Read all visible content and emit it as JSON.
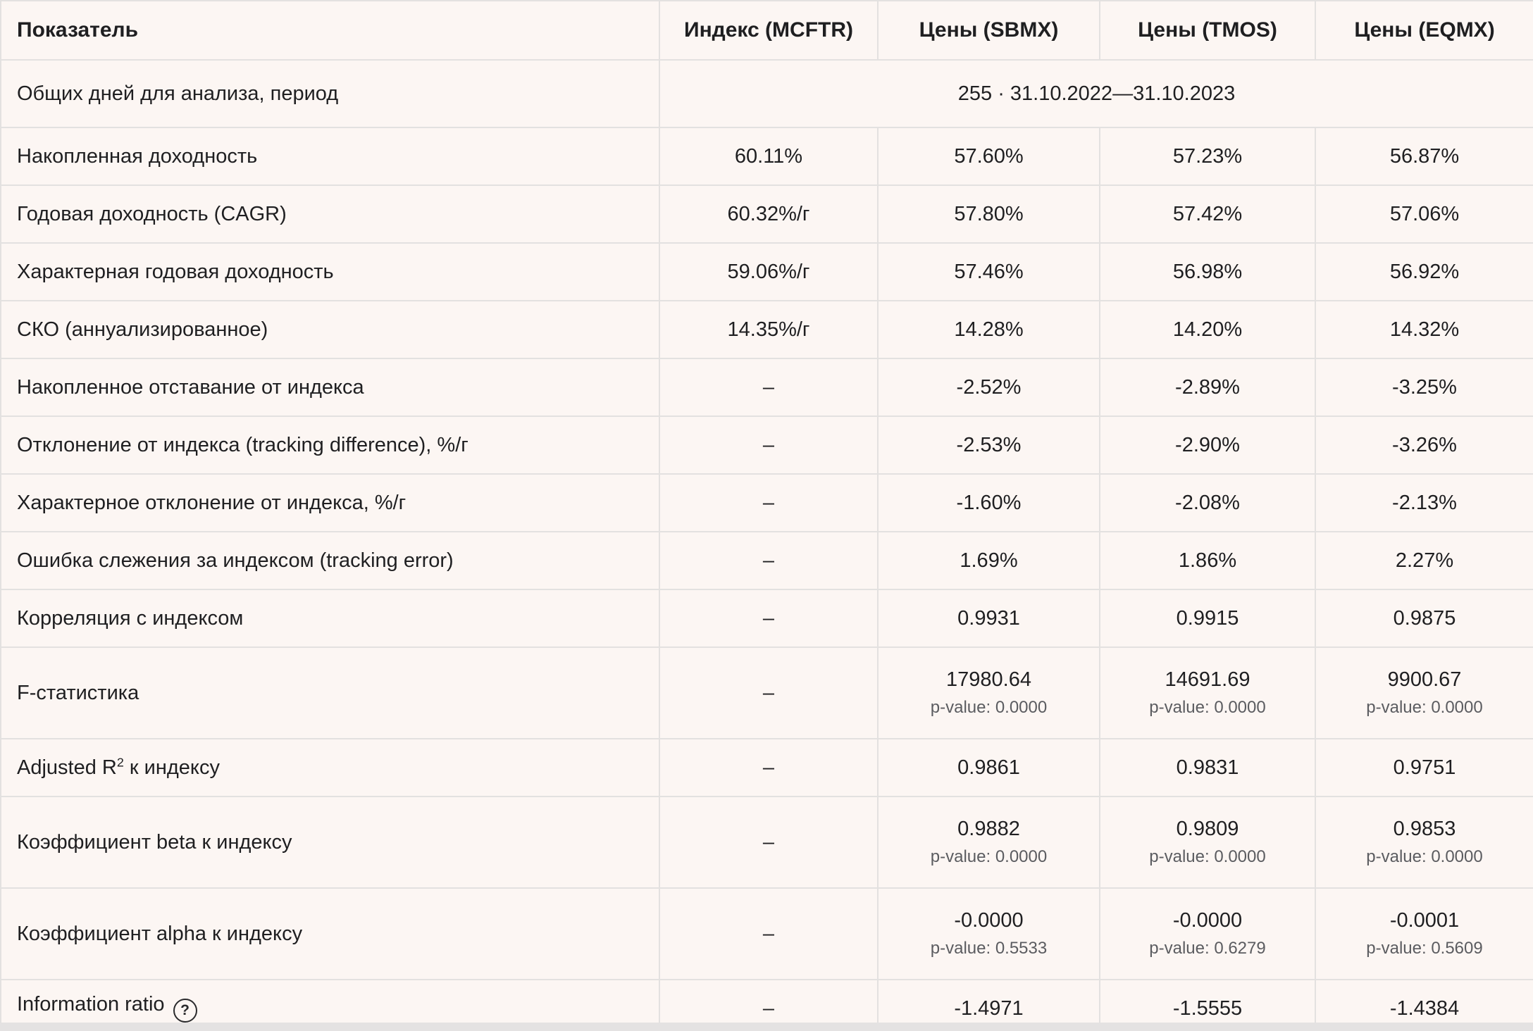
{
  "colors": {
    "background": "#FCF6F3",
    "border": "#E3E1E0",
    "text": "#1F1F21",
    "subtext": "#5B5C60"
  },
  "icons": {
    "help_glyph": "?"
  },
  "table": {
    "header": {
      "metric": "Показатель",
      "col_mcftr": "Индекс (MCFTR)",
      "col_sbmx": "Цены (SBMX)",
      "col_tmos": "Цены (TMOS)",
      "col_eqmx": "Цены (EQMX)"
    },
    "period_row": {
      "label": "Общих дней для анализа, период",
      "value": "255 · 31.10.2022—31.10.2023"
    },
    "rows": [
      {
        "label": "Накопленная доходность",
        "values": [
          "60.11%",
          "57.60%",
          "57.23%",
          "56.87%"
        ]
      },
      {
        "label": "Годовая доходность (CAGR)",
        "values": [
          "60.32%/г",
          "57.80%",
          "57.42%",
          "57.06%"
        ]
      },
      {
        "label": "Характерная годовая доходность",
        "values": [
          "59.06%/г",
          "57.46%",
          "56.98%",
          "56.92%"
        ]
      },
      {
        "label": "СКО (аннуализированное)",
        "values": [
          "14.35%/г",
          "14.28%",
          "14.20%",
          "14.32%"
        ]
      },
      {
        "label": "Накопленное отставание от индекса",
        "values": [
          "–",
          "-2.52%",
          "-2.89%",
          "-3.25%"
        ]
      },
      {
        "label": "Отклонение от индекса (tracking difference), %/г",
        "values": [
          "–",
          "-2.53%",
          "-2.90%",
          "-3.26%"
        ]
      },
      {
        "label": "Характерное отклонение от индекса, %/г",
        "values": [
          "–",
          "-1.60%",
          "-2.08%",
          "-2.13%"
        ]
      },
      {
        "label": "Ошибка слежения за индексом (tracking error)",
        "values": [
          "–",
          "1.69%",
          "1.86%",
          "2.27%"
        ]
      },
      {
        "label": "Корреляция с индексом",
        "values": [
          "–",
          "0.9931",
          "0.9915",
          "0.9875"
        ]
      },
      {
        "label": "F-статистика",
        "values": [
          "–",
          "17980.64",
          "14691.69",
          "9900.67"
        ],
        "subs": [
          "",
          "p-value: 0.0000",
          "p-value: 0.0000",
          "p-value: 0.0000"
        ]
      },
      {
        "label_pre": "Adjusted R",
        "label_sup": "2",
        "label_post": " к индексу",
        "values": [
          "–",
          "0.9861",
          "0.9831",
          "0.9751"
        ]
      },
      {
        "label": "Коэффициент beta к индексу",
        "values": [
          "–",
          "0.9882",
          "0.9809",
          "0.9853"
        ],
        "subs": [
          "",
          "p-value: 0.0000",
          "p-value: 0.0000",
          "p-value: 0.0000"
        ]
      },
      {
        "label": "Коэффициент alpha к индексу",
        "values": [
          "–",
          "-0.0000",
          "-0.0000",
          "-0.0001"
        ],
        "subs": [
          "",
          "p-value: 0.5533",
          "p-value: 0.6279",
          "p-value: 0.5609"
        ]
      },
      {
        "label": "Information ratio",
        "values": [
          "–",
          "-1.4971",
          "-1.5555",
          "-1.4384"
        ]
      }
    ]
  }
}
